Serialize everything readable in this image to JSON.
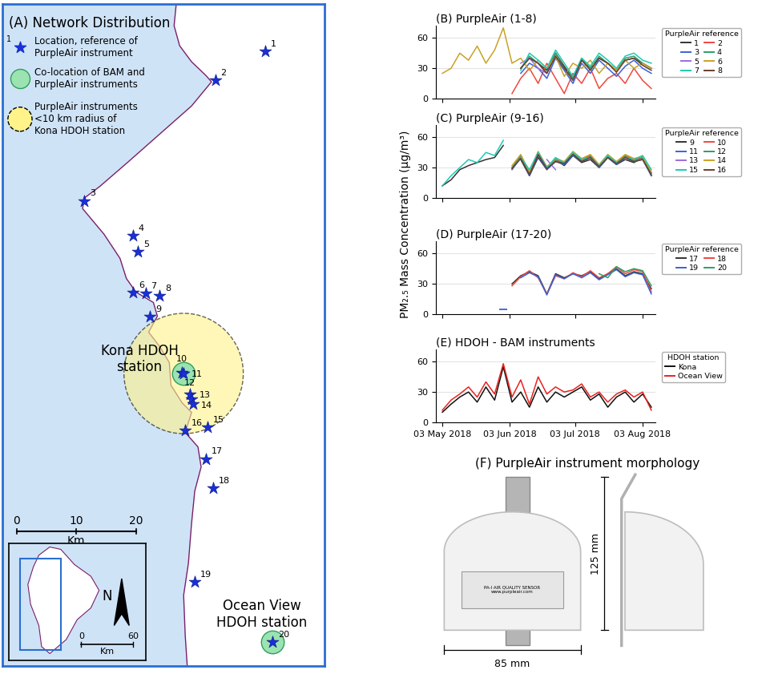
{
  "y_label": "PM₂.₅ Mass Concentration (μg/m³)",
  "chart_data": [
    {
      "type": "map",
      "title": "(A) Network Distribution",
      "xlim": [
        0,
        54
      ],
      "ylim": [
        0,
        110
      ],
      "labels": [
        "1",
        "2",
        "3",
        "4",
        "5",
        "6",
        "7",
        "8",
        "9",
        "10",
        "11",
        "12",
        "13",
        "14",
        "15",
        "16",
        "17",
        "18",
        "19",
        "20"
      ],
      "x": [
        44.1,
        35.7,
        13.7,
        21.9,
        22.7,
        21.9,
        24.0,
        26.4,
        24.8,
        30.1,
        30.4,
        31.5,
        31.7,
        32.0,
        34.4,
        30.7,
        34.1,
        35.3,
        32.3,
        45.3
      ],
      "y": [
        102.1,
        97.3,
        77.3,
        71.5,
        68.8,
        62.1,
        61.9,
        61.5,
        58.0,
        48.8,
        48.6,
        45.1,
        44.3,
        43.5,
        39.7,
        39.1,
        34.4,
        29.5,
        14.0,
        4.0
      ],
      "color": "#1a2fd6",
      "marker": "star",
      "colocated": [
        "11",
        "20"
      ],
      "radius_center": "11",
      "radius_km": 10,
      "legend_marker_label": "1",
      "legend_entries": [
        "Location, reference of\nPurpleAir instrument",
        "Co-location of BAM and\nPurpleAir instruments",
        "PurpleAir instruments\n<10 km radius of\nKona HDOH station"
      ],
      "annotations": [
        "Kona HDOH\nstation",
        "Ocean View\nHDOH station"
      ],
      "scale_ticks": [
        0,
        10,
        20
      ],
      "scale_unit": "Km",
      "inset_scale_ticks": [
        0,
        60
      ],
      "inset_scale_unit": "Km",
      "north_label": "N"
    },
    {
      "type": "line",
      "title": "(B) PurpleAir (1-8)",
      "x": [
        "2018-05-03",
        "2018-05-07",
        "2018-05-11",
        "2018-05-15",
        "2018-05-19",
        "2018-05-23",
        "2018-05-27",
        "2018-05-31",
        "2018-06-04",
        "2018-06-08",
        "2018-06-12",
        "2018-06-16",
        "2018-06-20",
        "2018-06-24",
        "2018-06-28",
        "2018-07-02",
        "2018-07-06",
        "2018-07-10",
        "2018-07-14",
        "2018-07-18",
        "2018-07-22",
        "2018-07-26",
        "2018-07-30",
        "2018-08-03",
        "2018-08-07"
      ],
      "xlim": [
        "2018-04-30",
        "2018-08-09"
      ],
      "xticks": [
        {
          "value": "2018-05-03",
          "label": "03 May 2018"
        },
        {
          "value": "2018-06-03",
          "label": "03 Jun 2018"
        },
        {
          "value": "2018-07-03",
          "label": "03 Jul 2018"
        },
        {
          "value": "2018-08-03",
          "label": "03 Aug 2018"
        }
      ],
      "ylim": [
        0,
        72
      ],
      "yticks": [
        0,
        30,
        60
      ],
      "grid": "y",
      "tick_labels": "y",
      "legend": "right",
      "legend_title": "PurpleAir reference",
      "series": [
        {
          "name": "1",
          "color": "#333333",
          "values": [
            null,
            null,
            null,
            null,
            null,
            null,
            null,
            null,
            null,
            30,
            40,
            35,
            28,
            45,
            32,
            20,
            38,
            30,
            40,
            35,
            28,
            38,
            40,
            35,
            30
          ]
        },
        {
          "name": "2",
          "color": "#f0483e",
          "values": [
            null,
            null,
            null,
            null,
            null,
            null,
            null,
            null,
            5,
            20,
            30,
            15,
            35,
            20,
            5,
            25,
            15,
            30,
            10,
            20,
            25,
            15,
            30,
            18,
            10
          ]
        },
        {
          "name": "3",
          "color": "#3a62d8",
          "values": [
            null,
            null,
            null,
            null,
            null,
            null,
            null,
            null,
            null,
            25,
            35,
            30,
            20,
            40,
            28,
            15,
            35,
            25,
            38,
            30,
            22,
            32,
            38,
            30,
            25
          ]
        },
        {
          "name": "4",
          "color": "#2e9e68",
          "values": [
            null,
            null,
            null,
            null,
            null,
            null,
            null,
            null,
            null,
            30,
            42,
            35,
            25,
            45,
            30,
            20,
            40,
            30,
            42,
            35,
            28,
            40,
            42,
            35,
            30
          ]
        },
        {
          "name": "5",
          "color": "#9a6be0",
          "values": [
            null,
            null,
            null,
            null,
            null,
            null,
            null,
            null,
            null,
            35,
            40,
            30,
            25,
            42,
            null,
            null,
            null,
            null,
            null,
            null,
            null,
            null,
            null,
            null,
            null
          ]
        },
        {
          "name": "6",
          "color": "#c9a227",
          "values": [
            25,
            30,
            45,
            38,
            52,
            35,
            48,
            70,
            35,
            40,
            28,
            38,
            30,
            42,
            22,
            35,
            30,
            38,
            25,
            35,
            28,
            38,
            30,
            35,
            30
          ]
        },
        {
          "name": "7",
          "color": "#1fc9b5",
          "values": [
            null,
            null,
            null,
            null,
            null,
            null,
            null,
            null,
            null,
            28,
            45,
            38,
            30,
            48,
            35,
            22,
            40,
            32,
            45,
            38,
            30,
            42,
            45,
            38,
            35
          ]
        },
        {
          "name": "8",
          "color": "#6b3e2e",
          "values": [
            null,
            null,
            null,
            null,
            null,
            null,
            null,
            null,
            null,
            30,
            40,
            35,
            25,
            42,
            30,
            18,
            38,
            28,
            40,
            35,
            26,
            38,
            40,
            33,
            28
          ]
        }
      ]
    },
    {
      "type": "line",
      "title": "(C) PurpleAir (9-16)",
      "x": [
        "2018-05-03",
        "2018-05-07",
        "2018-05-11",
        "2018-05-15",
        "2018-05-19",
        "2018-05-23",
        "2018-05-27",
        "2018-05-31",
        "2018-06-04",
        "2018-06-08",
        "2018-06-12",
        "2018-06-16",
        "2018-06-20",
        "2018-06-24",
        "2018-06-28",
        "2018-07-02",
        "2018-07-06",
        "2018-07-10",
        "2018-07-14",
        "2018-07-18",
        "2018-07-22",
        "2018-07-26",
        "2018-07-30",
        "2018-08-03",
        "2018-08-07"
      ],
      "xlim": [
        "2018-04-30",
        "2018-08-09"
      ],
      "xticks": [
        {
          "value": "2018-05-03",
          "label": "03 May 2018"
        },
        {
          "value": "2018-06-03",
          "label": "03 Jun 2018"
        },
        {
          "value": "2018-07-03",
          "label": "03 Jul 2018"
        },
        {
          "value": "2018-08-03",
          "label": "03 Aug 2018"
        }
      ],
      "ylim": [
        0,
        72
      ],
      "yticks": [
        0,
        30,
        60
      ],
      "grid": "y",
      "tick_labels": "y",
      "legend": "right",
      "legend_title": "PurpleAir reference",
      "series": [
        {
          "name": "9",
          "color": "#333333",
          "values": [
            12,
            18,
            28,
            32,
            35,
            38,
            40,
            52,
            null,
            38,
            22,
            40,
            28,
            38,
            32,
            42,
            35,
            38,
            30,
            40,
            33,
            38,
            35,
            40,
            22
          ]
        },
        {
          "name": "10",
          "color": "#f0483e",
          "values": [
            null,
            null,
            null,
            null,
            null,
            null,
            null,
            null,
            30,
            42,
            25,
            45,
            30,
            38,
            35,
            45,
            38,
            42,
            32,
            42,
            35,
            42,
            38,
            40,
            25
          ]
        },
        {
          "name": "11",
          "color": "#3a62d8",
          "values": [
            null,
            null,
            null,
            null,
            null,
            null,
            null,
            null,
            28,
            40,
            22,
            42,
            28,
            36,
            33,
            42,
            36,
            40,
            30,
            40,
            33,
            40,
            36,
            38,
            22
          ]
        },
        {
          "name": "12",
          "color": "#2e9e68",
          "values": [
            null,
            null,
            null,
            null,
            null,
            null,
            null,
            null,
            30,
            41,
            24,
            44,
            30,
            37,
            34,
            44,
            37,
            41,
            31,
            41,
            34,
            41,
            37,
            39,
            24
          ]
        },
        {
          "name": "13",
          "color": "#9a6be0",
          "values": [
            null,
            null,
            null,
            null,
            null,
            null,
            null,
            null,
            null,
            null,
            null,
            null,
            38,
            28,
            null,
            null,
            null,
            null,
            null,
            null,
            null,
            null,
            null,
            null,
            null
          ]
        },
        {
          "name": "14",
          "color": "#c9a227",
          "values": [
            null,
            null,
            null,
            null,
            null,
            null,
            null,
            null,
            32,
            43,
            26,
            46,
            31,
            39,
            36,
            46,
            39,
            43,
            33,
            43,
            36,
            43,
            39,
            41,
            26
          ]
        },
        {
          "name": "15",
          "color": "#1fc9b5",
          "values": [
            12,
            22,
            30,
            38,
            35,
            45,
            42,
            57,
            null,
            40,
            28,
            45,
            30,
            40,
            35,
            45,
            38,
            40,
            32,
            42,
            35,
            40,
            38,
            42,
            28
          ]
        },
        {
          "name": "16",
          "color": "#6b3e2e",
          "values": [
            null,
            null,
            null,
            null,
            null,
            null,
            null,
            null,
            29,
            39,
            23,
            43,
            29,
            36,
            34,
            43,
            36,
            40,
            31,
            40,
            34,
            40,
            36,
            38,
            23
          ]
        }
      ]
    },
    {
      "type": "line",
      "title": "(D) PurpleAir (17-20)",
      "x": [
        "2018-05-03",
        "2018-05-07",
        "2018-05-11",
        "2018-05-15",
        "2018-05-19",
        "2018-05-23",
        "2018-05-27",
        "2018-05-31",
        "2018-06-04",
        "2018-06-08",
        "2018-06-12",
        "2018-06-16",
        "2018-06-20",
        "2018-06-24",
        "2018-06-28",
        "2018-07-02",
        "2018-07-06",
        "2018-07-10",
        "2018-07-14",
        "2018-07-18",
        "2018-07-22",
        "2018-07-26",
        "2018-07-30",
        "2018-08-03",
        "2018-08-07"
      ],
      "xlim": [
        "2018-04-30",
        "2018-08-09"
      ],
      "xticks": [
        {
          "value": "2018-05-03",
          "label": "03 May 2018"
        },
        {
          "value": "2018-06-03",
          "label": "03 Jun 2018"
        },
        {
          "value": "2018-07-03",
          "label": "03 Jul 2018"
        },
        {
          "value": "2018-08-03",
          "label": "03 Aug 2018"
        }
      ],
      "ylim": [
        0,
        72
      ],
      "yticks": [
        0,
        30,
        60
      ],
      "grid": "y",
      "tick_labels": "y",
      "legend": "right",
      "legend_title": "PurpleAir reference",
      "series": [
        {
          "name": "17",
          "color": "#333333",
          "values": [
            null,
            null,
            null,
            null,
            null,
            null,
            null,
            null,
            30,
            38,
            42,
            38,
            20,
            40,
            36,
            40,
            38,
            42,
            35,
            40,
            45,
            38,
            42,
            40,
            25
          ]
        },
        {
          "name": "18",
          "color": "#f0483e",
          "values": [
            null,
            null,
            null,
            null,
            null,
            null,
            null,
            null,
            28,
            37,
            43,
            36,
            20,
            38,
            35,
            41,
            37,
            43,
            36,
            40,
            47,
            40,
            44,
            42,
            22
          ]
        },
        {
          "name": "19",
          "color": "#3a62d8",
          "values": [
            null,
            null,
            null,
            null,
            null,
            null,
            null,
            5,
            null,
            36,
            41,
            37,
            19,
            39,
            35,
            40,
            36,
            41,
            34,
            39,
            44,
            37,
            41,
            39,
            20
          ]
        },
        {
          "name": "20",
          "color": "#2e9e68",
          "values": [
            null,
            null,
            null,
            null,
            null,
            null,
            null,
            null,
            null,
            null,
            null,
            null,
            null,
            null,
            null,
            null,
            null,
            null,
            40,
            36,
            47,
            42,
            45,
            43,
            28
          ]
        }
      ]
    },
    {
      "type": "line",
      "title": "(E) HDOH - BAM instruments",
      "x": [
        "2018-05-03",
        "2018-05-07",
        "2018-05-11",
        "2018-05-15",
        "2018-05-19",
        "2018-05-23",
        "2018-05-27",
        "2018-05-31",
        "2018-06-04",
        "2018-06-08",
        "2018-06-12",
        "2018-06-16",
        "2018-06-20",
        "2018-06-24",
        "2018-06-28",
        "2018-07-02",
        "2018-07-06",
        "2018-07-10",
        "2018-07-14",
        "2018-07-18",
        "2018-07-22",
        "2018-07-26",
        "2018-07-30",
        "2018-08-03",
        "2018-08-07"
      ],
      "xlim": [
        "2018-04-30",
        "2018-08-09"
      ],
      "xticks": [
        {
          "value": "2018-05-03",
          "label": "03 May 2018"
        },
        {
          "value": "2018-06-03",
          "label": "03 Jun 2018"
        },
        {
          "value": "2018-07-03",
          "label": "03 Jul 2018"
        },
        {
          "value": "2018-08-03",
          "label": "03 Aug 2018"
        }
      ],
      "ylim": [
        0,
        72
      ],
      "yticks": [
        0,
        30,
        60
      ],
      "grid": "y",
      "legend": "right",
      "legend_title": "HDOH station",
      "series": [
        {
          "name": "Kona",
          "color": "#111111",
          "values": [
            10,
            18,
            25,
            30,
            20,
            35,
            22,
            55,
            20,
            30,
            15,
            35,
            20,
            30,
            25,
            30,
            35,
            22,
            28,
            15,
            25,
            30,
            20,
            28,
            15
          ]
        },
        {
          "name": "Ocean View",
          "color": "#e8231e",
          "values": [
            12,
            22,
            28,
            35,
            25,
            40,
            28,
            58,
            25,
            42,
            18,
            45,
            28,
            35,
            30,
            32,
            38,
            25,
            30,
            20,
            28,
            32,
            25,
            30,
            12
          ]
        }
      ]
    },
    {
      "type": "figure_panel",
      "title": "(F) PurpleAir instrument morphology",
      "dimensions": [
        "85 mm",
        "125 mm"
      ],
      "sticker_text": "PA-I AIR QUALITY SENSOR\nwww.purpleair.com"
    }
  ]
}
